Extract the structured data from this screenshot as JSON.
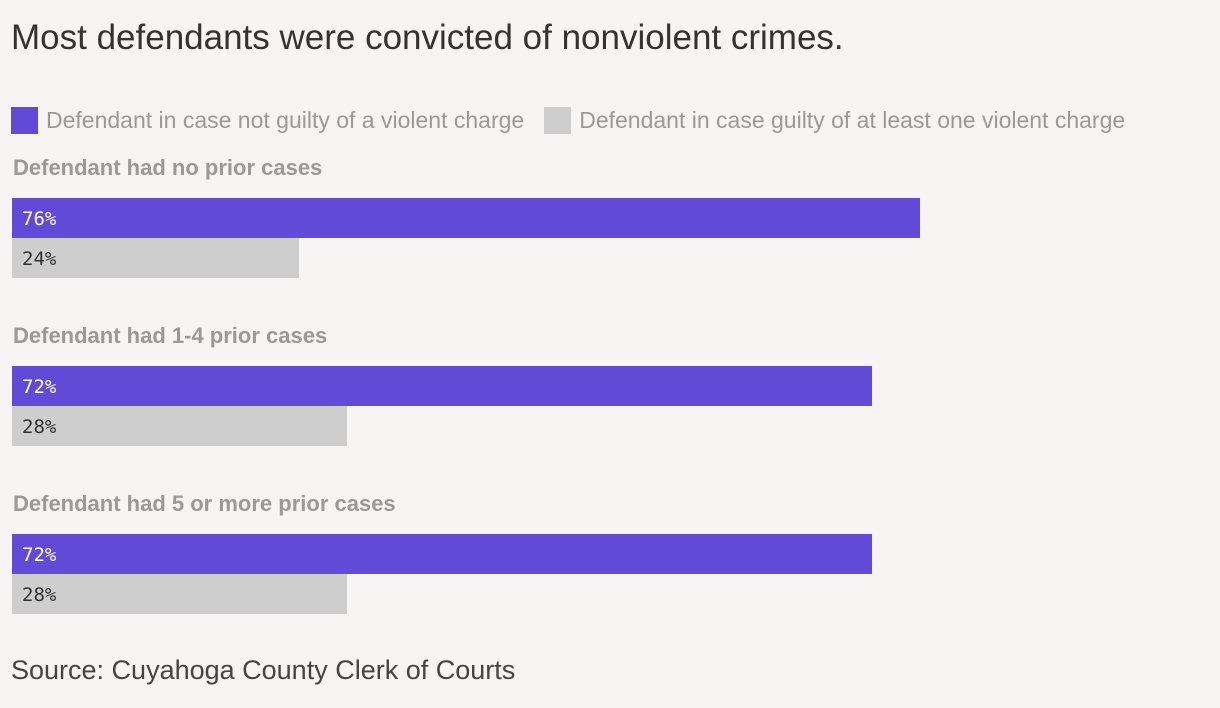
{
  "chart_data": {
    "type": "bar",
    "orientation": "horizontal",
    "title": "Most defendants were convicted of nonviolent crimes.",
    "categories": [
      "Defendant had no prior cases",
      "Defendant had 1-4 prior cases",
      "Defendant had 5 or more prior cases"
    ],
    "series": [
      {
        "name": "Defendant in case not guilty of a violent charge",
        "color": "#614bd6",
        "label_color": "#ffffff",
        "values": [
          76,
          72,
          72
        ],
        "labels": [
          "76%",
          "72%",
          "72%"
        ]
      },
      {
        "name": "Defendant in case guilty of at least one violent charge",
        "color": "#cecece",
        "label_color": "#333333",
        "values": [
          24,
          28,
          28
        ],
        "labels": [
          "24%",
          "28%",
          "28%"
        ]
      }
    ],
    "xlim": [
      0,
      100
    ],
    "unit": "%",
    "grid": false,
    "legend": "top-left",
    "source": "Source: Cuyahoga County Clerk of Courts"
  }
}
